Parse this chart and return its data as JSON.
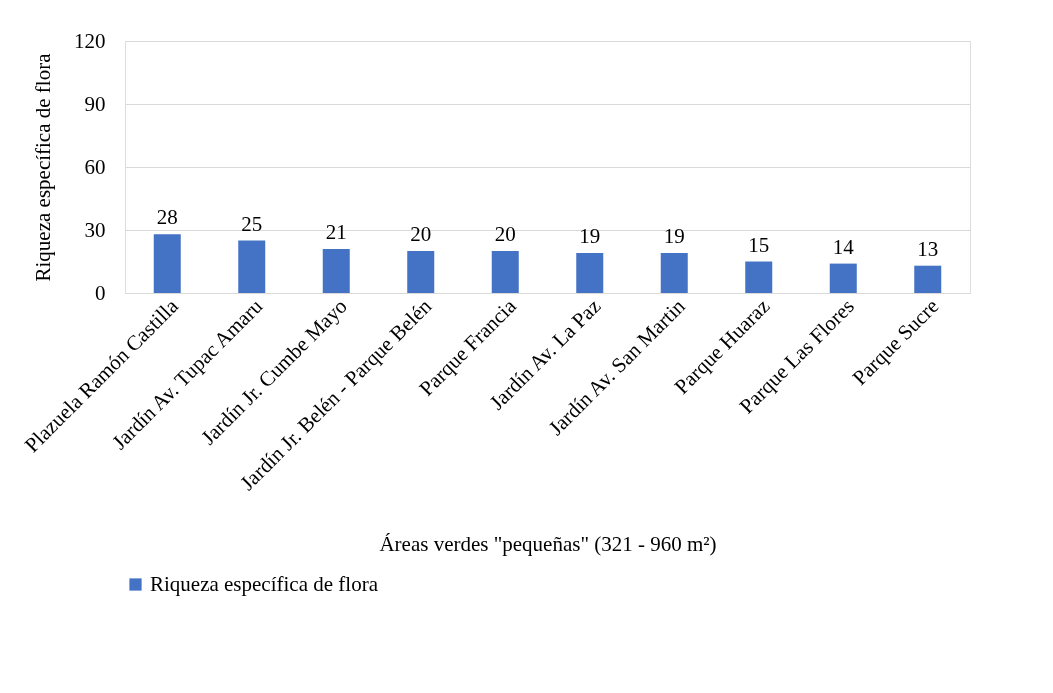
{
  "chart_data": {
    "type": "bar",
    "xlabel": "Áreas verdes \"pequeñas\" (321 - 960 m²)",
    "ylabel": "Riqueza específica de flora",
    "categories": [
      "Plazuela Ramón Castilla",
      "Jardín Av. Tupac Amaru",
      "Jardín Jr. Cumbe Mayo",
      "Jardín Jr. Belén - Parque Belén",
      "Parque Francia",
      "Jardín Av. La Paz",
      "Jardín Av. San Martin",
      "Parque Huaraz",
      "Parque Las Flores",
      "Parque Sucre"
    ],
    "series": [
      {
        "name": "Riqueza específica de flora",
        "color": "#4472c4",
        "values": [
          28,
          25,
          21,
          20,
          20,
          19,
          19,
          15,
          14,
          13
        ]
      }
    ],
    "ylim": [
      0,
      120
    ],
    "yticks": [
      0,
      30,
      60,
      90,
      120
    ],
    "grid": "y",
    "legend": "bottom",
    "data_labels": true
  }
}
